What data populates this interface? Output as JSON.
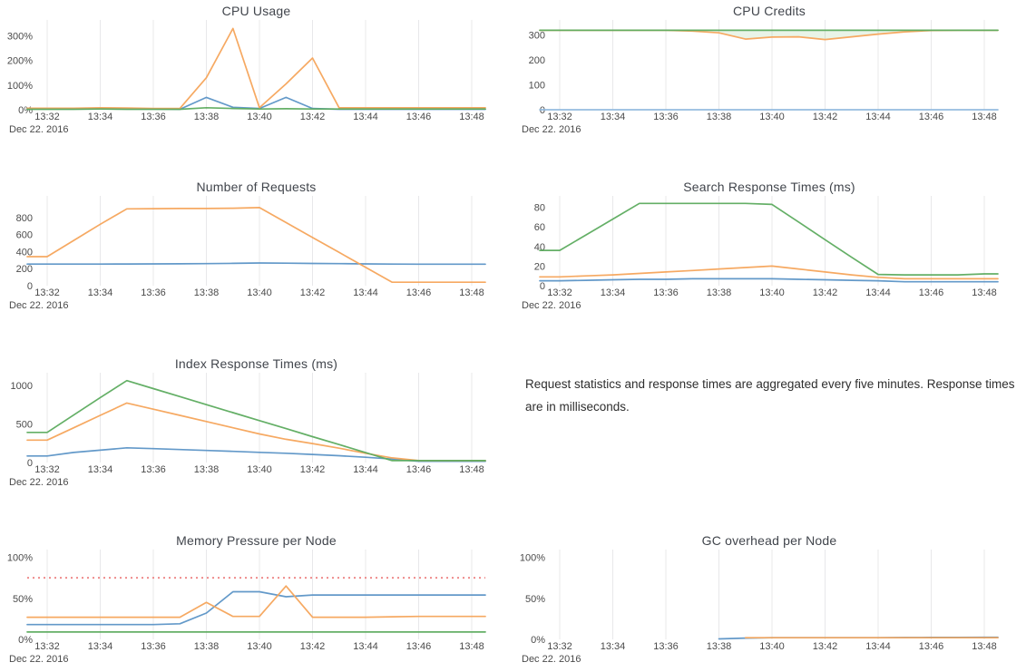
{
  "note": {
    "text": "Request statistics and response times are aggregated every five minutes. Response times are in milliseconds."
  },
  "chart_data": [
    {
      "type": "line",
      "title": "CPU Usage",
      "x": [
        "13:32",
        "13:33",
        "13:34",
        "13:35",
        "13:36",
        "13:37",
        "13:38",
        "13:39",
        "13:40",
        "13:41",
        "13:42",
        "13:43",
        "13:44",
        "13:45",
        "13:46",
        "13:47",
        "13:48"
      ],
      "x_ticks": [
        "13:32",
        "13:34",
        "13:36",
        "13:38",
        "13:40",
        "13:42",
        "13:44",
        "13:46",
        "13:48"
      ],
      "date_label": "Dec 22. 2016",
      "ylim": [
        0,
        350
      ],
      "y_ticks": [
        {
          "v": 0,
          "label": "0%"
        },
        {
          "v": 100,
          "label": "100%"
        },
        {
          "v": 200,
          "label": "200%"
        },
        {
          "v": 300,
          "label": "300%"
        }
      ],
      "grid": "vertical",
      "legend": "none",
      "series": [
        {
          "name": "instance-blue",
          "color": "#5b94c6",
          "values": [
            3,
            3,
            4,
            3,
            3,
            2,
            50,
            10,
            5,
            50,
            5,
            2,
            2,
            2,
            2,
            2,
            2
          ]
        },
        {
          "name": "instance-orange",
          "color": "#f5a45a",
          "values": [
            6,
            6,
            8,
            7,
            5,
            5,
            130,
            330,
            8,
            105,
            210,
            8,
            8,
            8,
            8,
            8,
            8
          ]
        },
        {
          "name": "instance-green",
          "color": "#5cab5e",
          "values": [
            2,
            2,
            3,
            2,
            2,
            2,
            8,
            5,
            3,
            4,
            3,
            3,
            3,
            3,
            3,
            3,
            3
          ]
        }
      ]
    },
    {
      "type": "line",
      "title": "CPU Credits",
      "x": [
        "13:32",
        "13:33",
        "13:34",
        "13:35",
        "13:36",
        "13:37",
        "13:38",
        "13:39",
        "13:40",
        "13:41",
        "13:42",
        "13:43",
        "13:44",
        "13:45",
        "13:46",
        "13:47",
        "13:48"
      ],
      "x_ticks": [
        "13:32",
        "13:34",
        "13:36",
        "13:38",
        "13:40",
        "13:42",
        "13:44",
        "13:46",
        "13:48"
      ],
      "date_label": "Dec 22. 2016",
      "ylim": [
        0,
        345
      ],
      "y_ticks": [
        {
          "v": 0,
          "label": "0"
        },
        {
          "v": 100,
          "label": "100"
        },
        {
          "v": 200,
          "label": "200"
        },
        {
          "v": 300,
          "label": "300"
        }
      ],
      "grid": "vertical",
      "legend": "none",
      "fills": [
        {
          "top": 2,
          "bottom": 1,
          "color": "rgba(110,180,100,0.15)"
        }
      ],
      "series": [
        {
          "name": "instance-blue",
          "color": "#8fb8dd",
          "values": [
            0,
            0,
            0,
            0,
            0,
            0,
            0,
            0,
            0,
            0,
            0,
            0,
            0,
            0,
            0,
            0,
            0
          ]
        },
        {
          "name": "instance-orange",
          "color": "#f5a45a",
          "values": [
            318,
            318,
            318,
            318,
            318,
            315,
            308,
            283,
            291,
            292,
            281,
            292,
            303,
            312,
            317,
            318,
            318
          ]
        },
        {
          "name": "instance-green",
          "color": "#5cab5e",
          "values": [
            318,
            318,
            318,
            318,
            318,
            318,
            318,
            318,
            318,
            318,
            318,
            318,
            318,
            318,
            318,
            318,
            318
          ]
        }
      ]
    },
    {
      "type": "line",
      "title": "Number of Requests",
      "x": [
        "13:32",
        "13:33",
        "13:34",
        "13:35",
        "13:36",
        "13:37",
        "13:38",
        "13:39",
        "13:40",
        "13:41",
        "13:42",
        "13:43",
        "13:44",
        "13:45",
        "13:46",
        "13:47",
        "13:48"
      ],
      "x_ticks": [
        "13:32",
        "13:34",
        "13:36",
        "13:38",
        "13:40",
        "13:42",
        "13:44",
        "13:46",
        "13:48"
      ],
      "date_label": "Dec 22. 2016",
      "ylim": [
        0,
        1010
      ],
      "y_ticks": [
        {
          "v": 0,
          "label": "0"
        },
        {
          "v": 200,
          "label": "200"
        },
        {
          "v": 400,
          "label": "400"
        },
        {
          "v": 600,
          "label": "600"
        },
        {
          "v": 800,
          "label": "800"
        }
      ],
      "grid": "vertical",
      "legend": "none",
      "series": [
        {
          "name": "requests-blue",
          "color": "#5b94c6",
          "values": [
            253,
            253,
            253,
            254,
            255,
            256,
            258,
            262,
            266,
            264,
            261,
            258,
            255,
            253,
            252,
            252,
            252
          ]
        },
        {
          "name": "requests-orange",
          "color": "#f5a45a",
          "values": [
            340,
            530,
            720,
            900,
            903,
            905,
            905,
            908,
            915,
            740,
            565,
            390,
            215,
            40,
            40,
            40,
            40
          ]
        }
      ]
    },
    {
      "type": "line",
      "title": "Search Response Times (ms)",
      "x": [
        "13:32",
        "13:33",
        "13:34",
        "13:35",
        "13:36",
        "13:37",
        "13:38",
        "13:39",
        "13:40",
        "13:41",
        "13:42",
        "13:43",
        "13:44",
        "13:45",
        "13:46",
        "13:47",
        "13:48"
      ],
      "x_ticks": [
        "13:32",
        "13:34",
        "13:36",
        "13:38",
        "13:40",
        "13:42",
        "13:44",
        "13:46",
        "13:48"
      ],
      "date_label": "Dec 22. 2016",
      "ylim": [
        0,
        88
      ],
      "y_ticks": [
        {
          "v": 0,
          "label": "0"
        },
        {
          "v": 20,
          "label": "20"
        },
        {
          "v": 40,
          "label": "40"
        },
        {
          "v": 60,
          "label": "60"
        },
        {
          "v": 80,
          "label": "80"
        }
      ],
      "grid": "vertical",
      "legend": "none",
      "series": [
        {
          "name": "search-blue",
          "color": "#5b94c6",
          "values": [
            5,
            5.5,
            6,
            6.5,
            6.5,
            7,
            7,
            7,
            7,
            6.5,
            6,
            5.5,
            5,
            4,
            4,
            4,
            4
          ]
        },
        {
          "name": "search-orange",
          "color": "#f5a45a",
          "values": [
            9,
            10,
            11,
            12.5,
            14,
            15.5,
            17,
            18.5,
            20,
            17,
            14,
            11,
            8.5,
            7,
            7,
            7,
            7
          ]
        },
        {
          "name": "search-green",
          "color": "#5cab5e",
          "values": [
            36,
            52,
            68,
            84,
            84,
            84,
            84,
            84,
            83,
            65,
            47,
            29,
            11.5,
            11,
            11,
            11,
            12
          ]
        }
      ]
    },
    {
      "type": "line",
      "title": "Index Response Times (ms)",
      "x": [
        "13:32",
        "13:33",
        "13:34",
        "13:35",
        "13:36",
        "13:37",
        "13:38",
        "13:39",
        "13:40",
        "13:41",
        "13:42",
        "13:43",
        "13:44",
        "13:45",
        "13:46",
        "13:47",
        "13:48"
      ],
      "x_ticks": [
        "13:32",
        "13:34",
        "13:36",
        "13:38",
        "13:40",
        "13:42",
        "13:44",
        "13:46",
        "13:48"
      ],
      "date_label": "Dec 22. 2016",
      "ylim": [
        0,
        1115
      ],
      "y_ticks": [
        {
          "v": 0,
          "label": "0"
        },
        {
          "v": 500,
          "label": "500"
        },
        {
          "v": 1000,
          "label": "1000"
        }
      ],
      "grid": "vertical",
      "legend": "none",
      "series": [
        {
          "name": "index-blue",
          "color": "#5b94c6",
          "values": [
            85,
            130,
            160,
            190,
            180,
            168,
            156,
            144,
            132,
            120,
            105,
            88,
            68,
            45,
            15,
            15,
            15
          ]
        },
        {
          "name": "index-orange",
          "color": "#f5a45a",
          "values": [
            290,
            450,
            610,
            770,
            690,
            610,
            530,
            450,
            370,
            300,
            245,
            185,
            120,
            60,
            25,
            25,
            25
          ]
        },
        {
          "name": "index-green",
          "color": "#5cab5e",
          "values": [
            390,
            615,
            840,
            1060,
            956,
            853,
            749,
            646,
            542,
            439,
            335,
            232,
            128,
            25,
            25,
            25,
            25
          ]
        }
      ]
    },
    {
      "type": "line",
      "title": "Memory Pressure per Node",
      "x": [
        "13:32",
        "13:33",
        "13:34",
        "13:35",
        "13:36",
        "13:37",
        "13:38",
        "13:39",
        "13:40",
        "13:41",
        "13:42",
        "13:43",
        "13:44",
        "13:45",
        "13:46",
        "13:47",
        "13:48"
      ],
      "x_ticks": [
        "13:32",
        "13:34",
        "13:36",
        "13:38",
        "13:40",
        "13:42",
        "13:44",
        "13:46",
        "13:48"
      ],
      "date_label": "Dec 22. 2016",
      "ylim": [
        0,
        105
      ],
      "y_ticks": [
        {
          "v": 0,
          "label": "0%"
        },
        {
          "v": 50,
          "label": "50%"
        },
        {
          "v": 100,
          "label": "100%"
        }
      ],
      "grid": "vertical",
      "legend": "none",
      "threshold": {
        "value": 75,
        "color": "#ee8c8c",
        "style": "dotted"
      },
      "series": [
        {
          "name": "node-blue",
          "color": "#5b94c6",
          "values": [
            18,
            18,
            18,
            18,
            18,
            19,
            32,
            58,
            58,
            52,
            54,
            54,
            54,
            54,
            54,
            54,
            54
          ]
        },
        {
          "name": "node-orange",
          "color": "#f5a45a",
          "values": [
            27,
            27,
            27,
            27,
            27,
            27,
            45,
            28,
            28,
            65,
            27,
            27,
            27,
            27.5,
            28,
            28,
            28
          ]
        },
        {
          "name": "node-green",
          "color": "#5cab5e",
          "values": [
            9,
            9,
            9,
            9,
            9,
            9,
            9,
            9,
            9,
            9,
            9,
            9,
            9,
            9,
            9,
            9,
            9
          ]
        }
      ]
    },
    {
      "type": "line",
      "title": "GC overhead per Node",
      "x": [
        "13:32",
        "13:33",
        "13:34",
        "13:35",
        "13:36",
        "13:37",
        "13:38",
        "13:39",
        "13:40",
        "13:41",
        "13:42",
        "13:43",
        "13:44",
        "13:45",
        "13:46",
        "13:47",
        "13:48"
      ],
      "x_ticks": [
        "13:32",
        "13:34",
        "13:36",
        "13:38",
        "13:40",
        "13:42",
        "13:44",
        "13:46",
        "13:48"
      ],
      "date_label": "Dec 22. 2016",
      "ylim": [
        0,
        105
      ],
      "y_ticks": [
        {
          "v": 0,
          "label": "0%"
        },
        {
          "v": 50,
          "label": "50%"
        },
        {
          "v": 100,
          "label": "100%"
        }
      ],
      "grid": "vertical",
      "legend": "none",
      "series": [
        {
          "name": "node-blue",
          "color": "#5b94c6",
          "values": [
            null,
            null,
            null,
            null,
            null,
            null,
            0.5,
            1.5,
            2,
            2,
            2,
            2,
            2,
            2.2,
            2.3,
            2.4,
            2.5
          ]
        },
        {
          "name": "node-orange",
          "color": "#f5a45a",
          "values": [
            null,
            null,
            null,
            null,
            null,
            null,
            null,
            2,
            2,
            2,
            2,
            2,
            2,
            2,
            2,
            2,
            2
          ]
        }
      ]
    }
  ]
}
